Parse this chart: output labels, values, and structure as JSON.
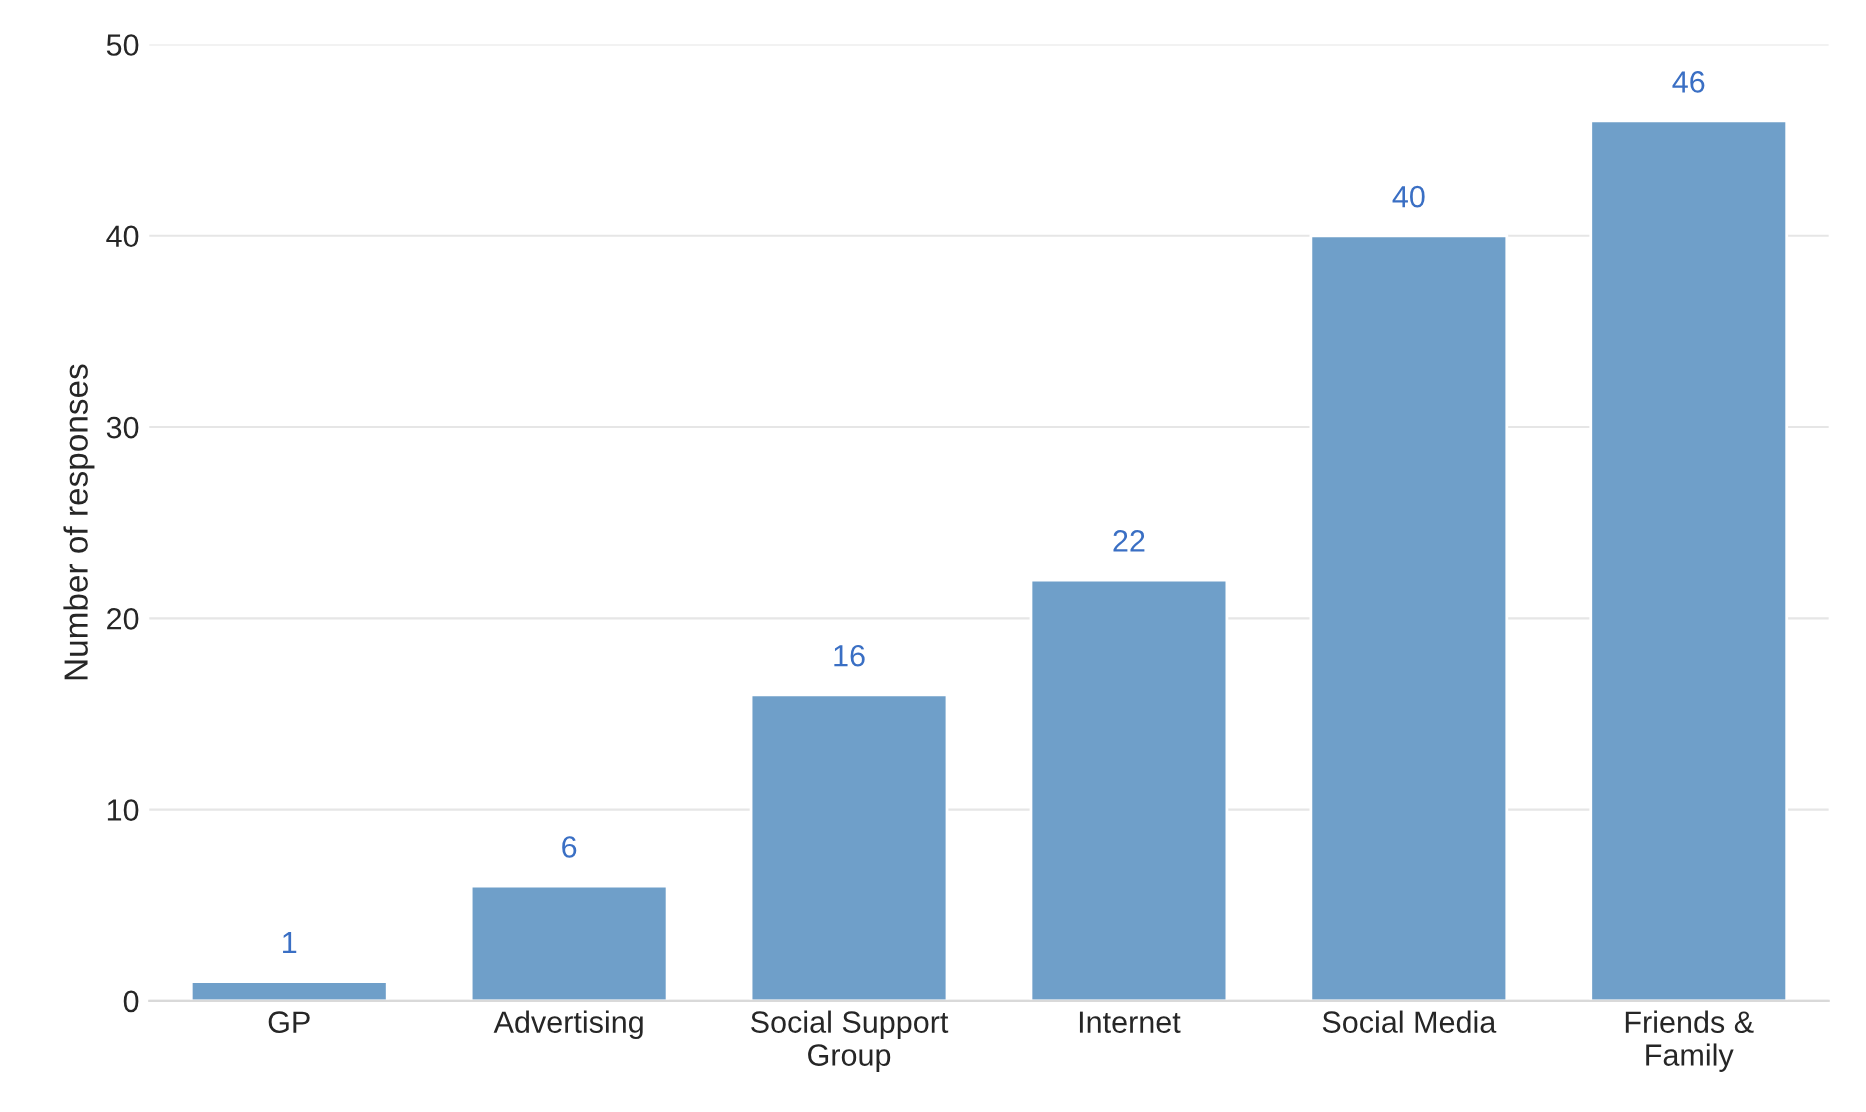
{
  "chart_data": {
    "type": "bar",
    "ylabel": "Number of responses",
    "categories": [
      "GP",
      "Advertising",
      "Social Support\nGroup",
      "Internet",
      "Social Media",
      "Friends &\nFamily"
    ],
    "values": [
      1,
      6,
      16,
      22,
      40,
      46
    ],
    "color": "#6f9fc9",
    "data_labels": true,
    "ylim": [
      0,
      50
    ],
    "yticks": [
      0,
      10,
      20,
      30,
      40,
      50
    ],
    "grid": "y",
    "legend": false
  }
}
